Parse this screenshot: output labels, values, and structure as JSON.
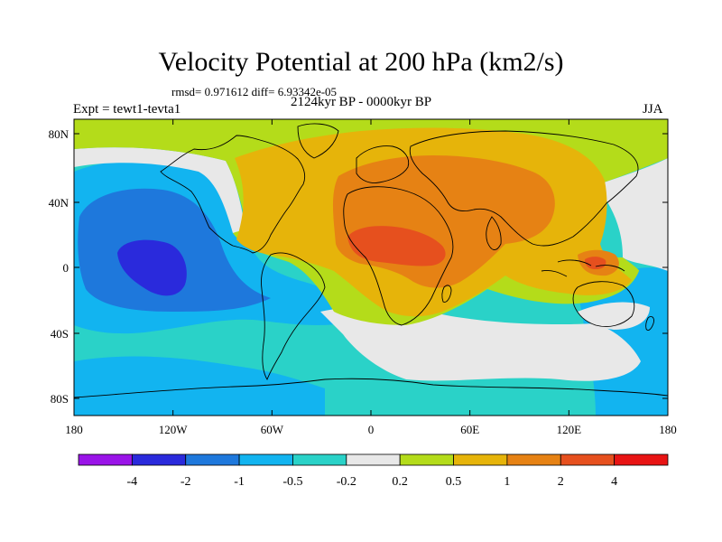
{
  "figure": {
    "title": "Velocity Potential at 200 hPa (km2/s)",
    "stats": "rmsd= 0.971612 diff= 6.93342e-05",
    "subtitle": "2124kyr BP - 0000kyr BP",
    "experiment": "Expt = tewt1-tevta1",
    "season": "JJA"
  },
  "axes": {
    "lat_ticks": [
      "80N",
      "40N",
      "0",
      "40S",
      "80S"
    ],
    "lon_ticks": [
      "180",
      "120W",
      "60W",
      "0",
      "60E",
      "120E",
      "180"
    ]
  },
  "colorbar": {
    "labels": [
      "-4",
      "-2",
      "-1",
      "-0.5",
      "-0.2",
      "0.2",
      "0.5",
      "1",
      "2",
      "4"
    ],
    "colors": [
      "#9a14e8",
      "#2a2adc",
      "#1e78dc",
      "#12b4f0",
      "#2ad2c8",
      "#e8e8e8",
      "#b4dc1a",
      "#e6b40a",
      "#e68214",
      "#e6501e",
      "#e81414"
    ]
  },
  "colors": {
    "ocean_bg": "#2ad2c8",
    "coast": "#000000"
  }
}
